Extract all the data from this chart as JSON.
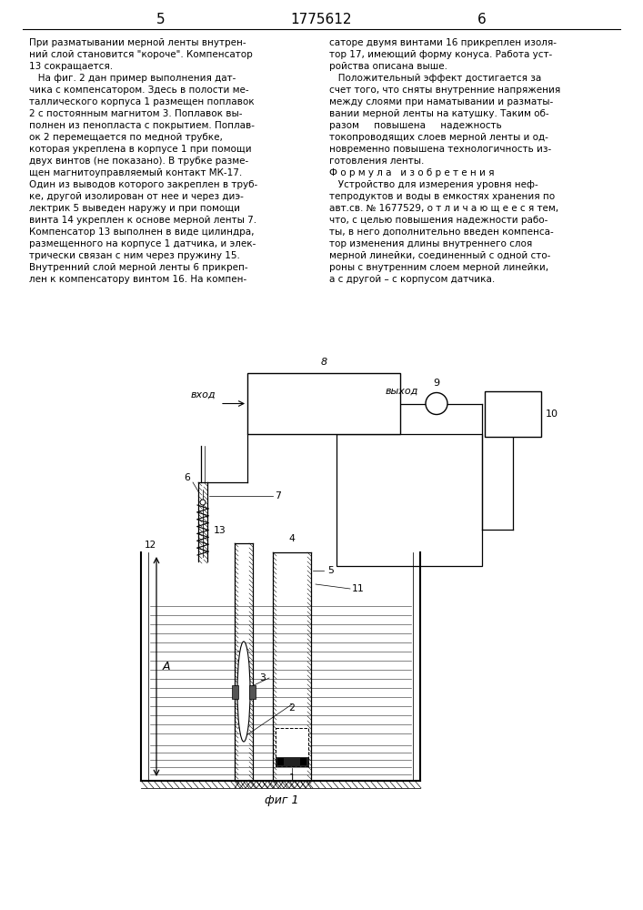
{
  "page_num_left": "5",
  "patent_num": "1775612",
  "page_num_right": "6",
  "left_col": [
    "При разматывании мерной ленты внутрен-",
    "ний слой становится \"короче\". Компенсатор",
    "13 сокращается.",
    "   На фиг. 2 дан пример выполнения дат-",
    "чика с компенсатором. Здесь в полости ме-",
    "таллического корпуса 1 размещен поплавок",
    "2 с постоянным магнитом 3. Поплавок вы-",
    "полнен из пенопласта с покрытием. Поплав-",
    "ок 2 перемещается по медной трубке,",
    "которая укреплена в корпусе 1 при помощи",
    "двух винтов (не показано). В трубке разме-",
    "щен магнитоуправляемый контакт МК-17.",
    "Один из выводов которого закреплен в труб-",
    "ке, другой изолирован от нее и через диэ-",
    "лектрик 5 выведен наружу и при помощи",
    "винта 14 укреплен к основе мерной ленты 7.",
    "Компенсатор 13 выполнен в виде цилиндра,",
    "размещенного на корпусе 1 датчика, и элек-",
    "трически связан с ним через пружину 15.",
    "Внутренний слой мерной ленты 6 прикреп-",
    "лен к компенсатору винтом 16. На компен-"
  ],
  "right_col": [
    "саторе двумя винтами 16 прикреплен изоля-",
    "тор 17, имеющий форму конуса. Работа уст-",
    "ройства описана выше.",
    "   Положительный эффект достигается за",
    "счет того, что сняты внутренние напряжения",
    "между слоями при наматывании и разматы-",
    "вании мерной ленты на катушку. Таким об-",
    "разом     повышена     надежность",
    "токопроводящих слоев мерной ленты и од-",
    "новременно повышена технологичность из-",
    "готовления ленты.",
    "Ф о р м у л а   и з о б р е т е н и я",
    "   Устройство для измерения уровня неф-",
    "тепродуктов и воды в емкостях хранения по",
    "авт.св. № 1677529, о т л и ч а ю щ е е с я тем,",
    "что, с целью повышения надежности рабо-",
    "ты, в него дополнительно введен компенса-",
    "тор изменения длины внутреннего слоя",
    "мерной линейки, соединенный с одной сто-",
    "роны с внутренним слоем мерной линейки,",
    "а с другой – с корпусом датчика."
  ],
  "fig_caption": "фиг 1"
}
